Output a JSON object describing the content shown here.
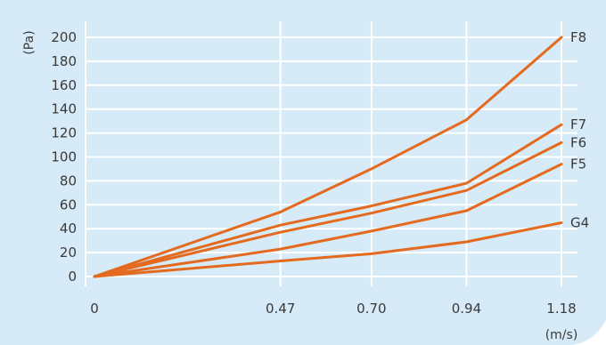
{
  "chart_data": {
    "type": "line",
    "x": [
      "0",
      "0.47",
      "0.70",
      "0.94",
      "1.18"
    ],
    "x_values": [
      0,
      0.47,
      0.7,
      0.94,
      1.18
    ],
    "xlabel": "(m/s)",
    "ylabel": "(Pa)",
    "ylim": [
      0,
      200
    ],
    "yticks": [
      "0",
      "20",
      "40",
      "60",
      "80",
      "100",
      "120",
      "140",
      "160",
      "180",
      "200"
    ],
    "ytick_values": [
      0,
      20,
      40,
      60,
      80,
      100,
      120,
      140,
      160,
      180,
      200
    ],
    "grid": true,
    "line_color": "#e36a1f",
    "background_color": "#d6eaf8",
    "grid_color": "#ffffff",
    "series": [
      {
        "name": "F8",
        "values": [
          0,
          54,
          90,
          131,
          200
        ]
      },
      {
        "name": "F7",
        "values": [
          0,
          43,
          59,
          78,
          127
        ]
      },
      {
        "name": "F6",
        "values": [
          0,
          37,
          53,
          72,
          112
        ]
      },
      {
        "name": "F5",
        "values": [
          0,
          23,
          38,
          55,
          94
        ]
      },
      {
        "name": "G4",
        "values": [
          0,
          13,
          19,
          29,
          45
        ]
      }
    ]
  }
}
